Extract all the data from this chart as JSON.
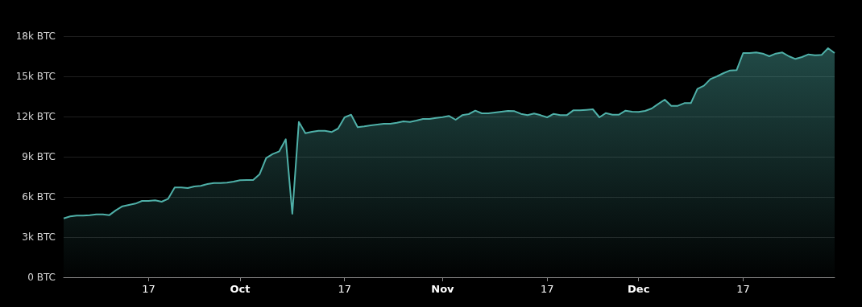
{
  "chart_data": {
    "type": "area",
    "x": [
      "--09-04",
      "--09-05",
      "--09-06",
      "--09-07",
      "--09-08",
      "--09-09",
      "--09-10",
      "--09-11",
      "--09-12",
      "--09-13",
      "--09-14",
      "--09-15",
      "--09-16",
      "--09-17",
      "--09-18",
      "--09-19",
      "--09-20",
      "--09-21",
      "--09-22",
      "--09-23",
      "--09-24",
      "--09-25",
      "--09-26",
      "--09-27",
      "--09-28",
      "--09-29",
      "--09-30",
      "--10-01",
      "--10-02",
      "--10-03",
      "--10-04",
      "--10-05",
      "--10-06",
      "--10-07",
      "--10-08",
      "--10-09",
      "--10-10",
      "--10-11",
      "--10-12",
      "--10-13",
      "--10-14",
      "--10-15",
      "--10-16",
      "--10-17",
      "--10-18",
      "--10-19",
      "--10-20",
      "--10-21",
      "--10-22",
      "--10-23",
      "--10-24",
      "--10-25",
      "--10-26",
      "--10-27",
      "--10-28",
      "--10-29",
      "--10-30",
      "--10-31",
      "--11-01",
      "--11-02",
      "--11-03",
      "--11-04",
      "--11-05",
      "--11-06",
      "--11-07",
      "--11-08",
      "--11-09",
      "--11-10",
      "--11-11",
      "--11-12",
      "--11-13",
      "--11-14",
      "--11-15",
      "--11-16",
      "--11-17",
      "--11-18",
      "--11-19",
      "--11-20",
      "--11-21",
      "--11-22",
      "--11-23",
      "--11-24",
      "--11-25",
      "--11-26",
      "--11-27",
      "--11-28",
      "--11-29",
      "--11-30",
      "--12-01",
      "--12-02",
      "--12-03",
      "--12-04",
      "--12-05",
      "--12-06",
      "--12-07",
      "--12-08",
      "--12-09",
      "--12-10",
      "--12-11",
      "--12-12",
      "--12-13",
      "--12-14",
      "--12-15",
      "--12-16",
      "--12-17",
      "--12-18",
      "--12-19",
      "--12-20",
      "--12-21",
      "--12-22",
      "--12-23",
      "--12-24",
      "--12-25",
      "--12-26",
      "--12-27",
      "--12-28",
      "--12-29",
      "--12-30",
      "--12-31"
    ],
    "series": [
      {
        "color": "#4fb0a8",
        "values": [
          4400,
          4540,
          4600,
          4600,
          4640,
          4700,
          4700,
          4640,
          5000,
          5300,
          5400,
          5500,
          5700,
          5700,
          5740,
          5640,
          5860,
          6700,
          6700,
          6660,
          6780,
          6820,
          6960,
          7040,
          7040,
          7060,
          7140,
          7240,
          7260,
          7260,
          7700,
          8900,
          9200,
          9400,
          10300,
          4740,
          11600,
          10760,
          10860,
          10940,
          10940,
          10840,
          11100,
          11940,
          12140,
          11200,
          11260,
          11340,
          11400,
          11460,
          11460,
          11540,
          11640,
          11600,
          11700,
          11820,
          11820,
          11900,
          11960,
          12040,
          11760,
          12100,
          12180,
          12440,
          12240,
          12240,
          12300,
          12360,
          12420,
          12400,
          12200,
          12100,
          12220,
          12100,
          11940,
          12200,
          12100,
          12100,
          12460,
          12460,
          12500,
          12540,
          11940,
          12260,
          12140,
          12140,
          12440,
          12360,
          12340,
          12420,
          12600,
          12940,
          13260,
          12800,
          12800,
          13000,
          13000,
          14060,
          14300,
          14800,
          15000,
          15240,
          15440,
          15460,
          16740,
          16740,
          16780,
          16700,
          16500,
          16700,
          16780,
          16500,
          16300,
          16440,
          16640,
          16580,
          16600,
          17100,
          16740
        ]
      }
    ],
    "xlim": [
      "--09-04",
      "--12-31"
    ],
    "xticks": [
      {
        "value": "--09-17",
        "label": "17"
      },
      {
        "value": "--10-01",
        "label": "Oct"
      },
      {
        "value": "--10-17",
        "label": "17"
      },
      {
        "value": "--11-01",
        "label": "Nov"
      },
      {
        "value": "--11-17",
        "label": "17"
      },
      {
        "value": "--12-01",
        "label": "Dec"
      },
      {
        "value": "--12-17",
        "label": "17"
      }
    ],
    "ylim": [
      0,
      18000
    ],
    "yticks": [
      {
        "value": 0,
        "label": "0 BTC"
      },
      {
        "value": 3000,
        "label": "3k BTC"
      },
      {
        "value": 6000,
        "label": "6k BTC"
      },
      {
        "value": 9000,
        "label": "9k BTC"
      },
      {
        "value": 12000,
        "label": "12k BTC"
      },
      {
        "value": 15000,
        "label": "15k BTC"
      },
      {
        "value": 18000,
        "label": "18k BTC"
      }
    ],
    "grid": "y",
    "marker": "none",
    "line_style": "solid"
  }
}
